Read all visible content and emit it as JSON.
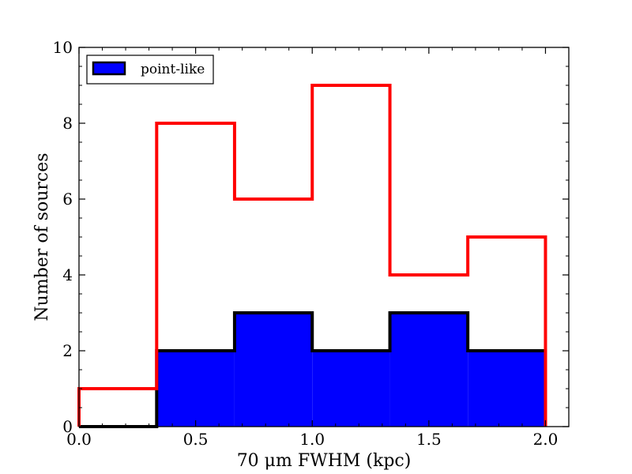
{
  "chart_data": {
    "type": "bar",
    "subtype": "step-histogram",
    "title": "",
    "xlabel": "70 μm FWHM (kpc)",
    "ylabel": "Number of sources",
    "xlim": [
      0.0,
      2.1
    ],
    "ylim": [
      0,
      10
    ],
    "xticks": [
      "0.0",
      "0.5",
      "1.0",
      "1.5",
      "2.0"
    ],
    "yticks": [
      "0",
      "2",
      "4",
      "6",
      "8",
      "10"
    ],
    "bin_edges": [
      0.0,
      0.333,
      0.667,
      1.0,
      1.333,
      1.667,
      2.0
    ],
    "series": [
      {
        "values": [
          1,
          8,
          6,
          9,
          4,
          5
        ],
        "style": "step",
        "color": "#ff0000"
      },
      {
        "name": "point-like",
        "values": [
          0,
          2,
          3,
          2,
          3,
          2
        ],
        "style": "filled",
        "color": "#0000ff",
        "edgecolor": "#000000"
      }
    ],
    "legend": {
      "position": "top-left",
      "entries": [
        "point-like"
      ]
    },
    "grid": false
  }
}
